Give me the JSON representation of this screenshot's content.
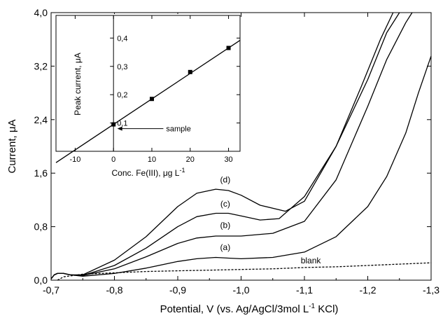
{
  "chart_data": [
    {
      "type": "line",
      "xlabel": "Potential, V (vs. Ag/AgCl/3mol L",
      "xlabel_sup": "-1",
      "xlabel_suffix": " KCl)",
      "ylabel": "Current, μA",
      "xlim": [
        -0.7,
        -1.3
      ],
      "ylim": [
        0.0,
        4.0
      ],
      "x_ticks": [
        "-0,7",
        "-0,8",
        "-0,9",
        "-1,0",
        "-1,1",
        "-1,2",
        "-1,3"
      ],
      "y_ticks": [
        "0,0",
        "0,8",
        "1,6",
        "2,4",
        "3,2",
        "4,0"
      ],
      "series": [
        {
          "name": "blank",
          "style": "dashed",
          "x": [
            -0.71,
            -0.72,
            -0.75,
            -0.8,
            -0.85,
            -0.9,
            -0.95,
            -1.0,
            -1.05,
            -1.1,
            -1.15,
            -1.2,
            -1.25,
            -1.3
          ],
          "y": [
            0.0,
            0.05,
            0.09,
            0.11,
            0.13,
            0.14,
            0.15,
            0.16,
            0.17,
            0.19,
            0.2,
            0.22,
            0.24,
            0.26
          ]
        },
        {
          "name": "(a)",
          "style": "solid",
          "x": [
            -0.7,
            -0.705,
            -0.71,
            -0.72,
            -0.73,
            -0.75,
            -0.8,
            -0.85,
            -0.9,
            -0.93,
            -0.96,
            -0.98,
            -1.0,
            -1.05,
            -1.1,
            -1.15,
            -1.2,
            -1.23,
            -1.26,
            -1.28,
            -1.3
          ],
          "y": [
            0.02,
            0.08,
            0.1,
            0.1,
            0.08,
            0.06,
            0.1,
            0.18,
            0.28,
            0.32,
            0.34,
            0.33,
            0.32,
            0.34,
            0.42,
            0.65,
            1.1,
            1.55,
            2.2,
            2.8,
            3.35
          ]
        },
        {
          "name": "(b)",
          "style": "solid",
          "x": [
            -0.7,
            -0.705,
            -0.71,
            -0.72,
            -0.73,
            -0.75,
            -0.8,
            -0.85,
            -0.9,
            -0.93,
            -0.96,
            -0.98,
            -1.0,
            -1.05,
            -1.1,
            -1.15,
            -1.2,
            -1.23,
            -1.26,
            -1.27
          ],
          "y": [
            0.02,
            0.08,
            0.1,
            0.1,
            0.08,
            0.07,
            0.17,
            0.35,
            0.55,
            0.63,
            0.66,
            0.66,
            0.66,
            0.7,
            0.88,
            1.5,
            2.6,
            3.3,
            3.85,
            4.0
          ]
        },
        {
          "name": "(c)",
          "style": "solid",
          "x": [
            -0.7,
            -0.705,
            -0.71,
            -0.72,
            -0.73,
            -0.75,
            -0.8,
            -0.85,
            -0.9,
            -0.93,
            -0.96,
            -0.98,
            -1.0,
            -1.03,
            -1.06,
            -1.1,
            -1.15,
            -1.2,
            -1.23,
            -1.25
          ],
          "y": [
            0.02,
            0.08,
            0.1,
            0.1,
            0.08,
            0.07,
            0.22,
            0.48,
            0.8,
            0.95,
            1.0,
            1.0,
            0.96,
            0.9,
            0.92,
            1.25,
            2.0,
            3.0,
            3.7,
            4.0
          ]
        },
        {
          "name": "(d)",
          "style": "solid",
          "x": [
            -0.7,
            -0.705,
            -0.71,
            -0.72,
            -0.73,
            -0.75,
            -0.8,
            -0.85,
            -0.9,
            -0.93,
            -0.96,
            -0.98,
            -1.0,
            -1.03,
            -1.07,
            -1.1,
            -1.15,
            -1.19,
            -1.22,
            -1.24
          ],
          "y": [
            0.02,
            0.08,
            0.1,
            0.1,
            0.08,
            0.08,
            0.3,
            0.65,
            1.1,
            1.3,
            1.36,
            1.34,
            1.27,
            1.12,
            1.03,
            1.18,
            2.0,
            2.9,
            3.6,
            4.0
          ]
        }
      ],
      "annotations": [
        {
          "text": "blank",
          "x": -1.11,
          "y": 0.25
        },
        {
          "text": "(a)",
          "x": -0.975,
          "y": 0.45
        },
        {
          "text": "(b)",
          "x": -0.975,
          "y": 0.78
        },
        {
          "text": "(c)",
          "x": -0.975,
          "y": 1.1
        },
        {
          "text": "(d)",
          "x": -0.975,
          "y": 1.46
        }
      ]
    },
    {
      "type": "scatter",
      "role": "inset",
      "xlabel": "Conc. Fe(III), μg L",
      "xlabel_sup": "-1",
      "ylabel": "Peak current, μA",
      "xlim": [
        -15,
        33
      ],
      "ylim": [
        0.0,
        0.48
      ],
      "x_ticks": [
        -10,
        0,
        10,
        20,
        30
      ],
      "y_tick_values": [
        0.1,
        0.2,
        0.3,
        0.4
      ],
      "y_tick_labels": [
        "0,1",
        "0,2",
        "0,3",
        "0,4"
      ],
      "points": [
        {
          "x": 0,
          "y": 0.095
        },
        {
          "x": 10,
          "y": 0.185
        },
        {
          "x": 20,
          "y": 0.28
        },
        {
          "x": 30,
          "y": 0.365
        }
      ],
      "fit_line": {
        "x": [
          -15,
          33
        ],
        "y": [
          -0.04,
          0.392
        ]
      },
      "annotation": {
        "text": "sample",
        "x": 1,
        "y": 0.08,
        "x_end": 13
      }
    }
  ]
}
